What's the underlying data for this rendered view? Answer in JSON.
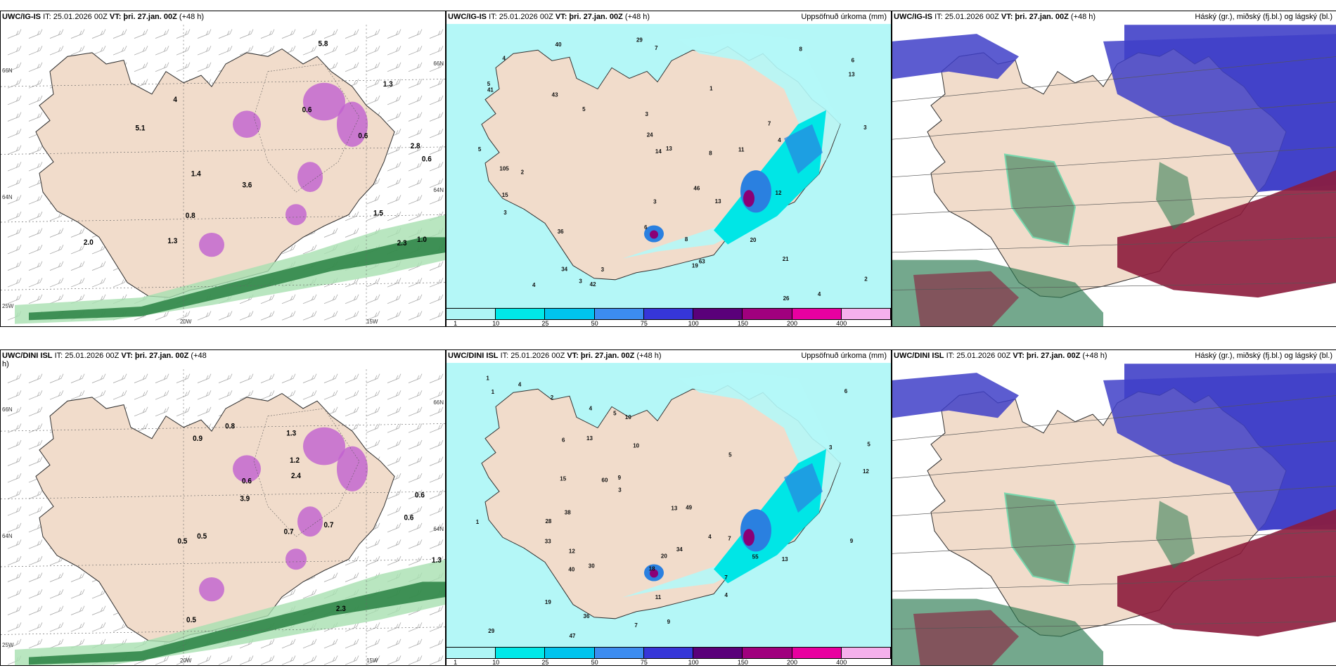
{
  "panels": [
    {
      "id": "p1",
      "model": "UWC/IG-IS",
      "it": "IT: 25.01.2026 00Z",
      "vt_label": "VT:",
      "vt": "þri. 27.jan. 00Z",
      "lead": "(+48 h)",
      "title": "",
      "kind": "wind",
      "axis": {
        "lat_left_top": "66N",
        "lat_right_top": "66N",
        "lat_left_mid": "64N",
        "lat_right_mid": "64N",
        "lon_left": "25W",
        "lon_mid": "20W",
        "lon_right": "15W"
      },
      "values": [
        "4",
        "2.8",
        "0.6",
        "0.6",
        "1.4",
        "1.0",
        "0.8",
        "5.8",
        "2.3",
        "1.3",
        "5.1",
        "1.5",
        "0.6",
        "1.3",
        "2.0",
        "3.6"
      ]
    },
    {
      "id": "p2",
      "model": "UWC/IG-IS",
      "it": "IT: 25.01.2026 00Z",
      "vt_label": "VT:",
      "vt": "þri. 27.jan. 00Z",
      "lead": "(+48 h)",
      "title": "Uppsöfnuð úrkoma (mm)",
      "kind": "precip",
      "values": [
        "5",
        "7",
        "7",
        "6",
        "5",
        "4",
        "2",
        "1",
        "3",
        "8",
        "13",
        "12",
        "29",
        "41",
        "43",
        "36",
        "63",
        "105",
        "46",
        "6",
        "20",
        "21",
        "13",
        "24",
        "34",
        "14",
        "13",
        "40",
        "42",
        "19",
        "15",
        "26",
        "8",
        "4",
        "3",
        "3",
        "4",
        "4",
        "3",
        "5",
        "8",
        "11",
        "2",
        "3",
        "3"
      ]
    },
    {
      "id": "p3",
      "model": "UWC/IG-IS",
      "it": "IT: 25.01.2026 00Z",
      "vt_label": "VT:",
      "vt": "þri. 27.jan. 00Z",
      "lead": "(+48 h)",
      "title": "Háský (gr.), miðský (fj.bl.) og lágský (bl.)",
      "kind": "cloud"
    },
    {
      "id": "p4",
      "model": "UWC/DINI ISL",
      "it": "IT: 25.01.2026 00Z",
      "vt_label": "VT:",
      "vt": "þri. 27.jan. 00Z",
      "lead": "(+48",
      "lead2": "h)",
      "title": "",
      "kind": "wind",
      "axis": {
        "lat_left_top": "66N",
        "lat_right_top": "66N",
        "lat_left_mid": "64N",
        "lat_right_mid": "64N",
        "lon_left": "25W",
        "lon_mid": "20W",
        "lon_right": "15W"
      },
      "values": [
        "0.5",
        "0.6",
        "0.6",
        "0.6",
        "0.5",
        "0.7",
        "1.2",
        "0.5",
        "3.9",
        "2.3",
        "1.3",
        "0.7",
        "2.4",
        "0.8",
        "0.9",
        "1.3"
      ]
    },
    {
      "id": "p5",
      "model": "UWC/DINI ISL",
      "it": "IT: 25.01.2026 00Z",
      "vt_label": "VT:",
      "vt": "þri. 27.jan. 00Z",
      "lead": "(+48 h)",
      "title": "Uppsöfnuð úrkoma (mm)",
      "kind": "precip",
      "values": [
        "1",
        "1",
        "1",
        "6",
        "5",
        "7",
        "10",
        "30",
        "29",
        "55",
        "40",
        "49",
        "47",
        "33",
        "20",
        "60",
        "18",
        "19",
        "13",
        "9",
        "12",
        "11",
        "36",
        "38",
        "28",
        "34",
        "12",
        "13",
        "7",
        "5",
        "4",
        "4",
        "3",
        "9",
        "13",
        "15",
        "2",
        "3",
        "4",
        "5",
        "6",
        "9",
        "7",
        "10",
        "4"
      ]
    },
    {
      "id": "p6",
      "model": "UWC/DINI ISL",
      "it": "IT: 25.01.2026 00Z",
      "vt_label": "VT:",
      "vt": "þri. 27.jan. 00Z",
      "lead": "(+48 h)",
      "title": "Háský (gr.), miðský (fj.bl.) og lágský (bl.)",
      "kind": "cloud"
    }
  ],
  "legend": {
    "colors": [
      "#aef6f6",
      "#00e8e8",
      "#00c4ee",
      "#3c8cf0",
      "#3636d8",
      "#5a007a",
      "#a0007e",
      "#e800a0",
      "#f5b0ec"
    ],
    "ticks": [
      "1",
      "10",
      "25",
      "50",
      "75",
      "100",
      "150",
      "200",
      "400"
    ]
  },
  "colors": {
    "land": "#f1dccb",
    "precip_light": "#b4f7f7",
    "precip_mid": "#00e6e6",
    "precip_heavy": "#2a80e0",
    "precip_core": "#8a0076",
    "magenta": "#c060d0",
    "green": "#1f7a3a",
    "green_light": "#a8e0b0",
    "cloud_high": "#2a7a50",
    "cloud_mid": "#8c1c3c",
    "cloud_low": "#4040c8"
  }
}
